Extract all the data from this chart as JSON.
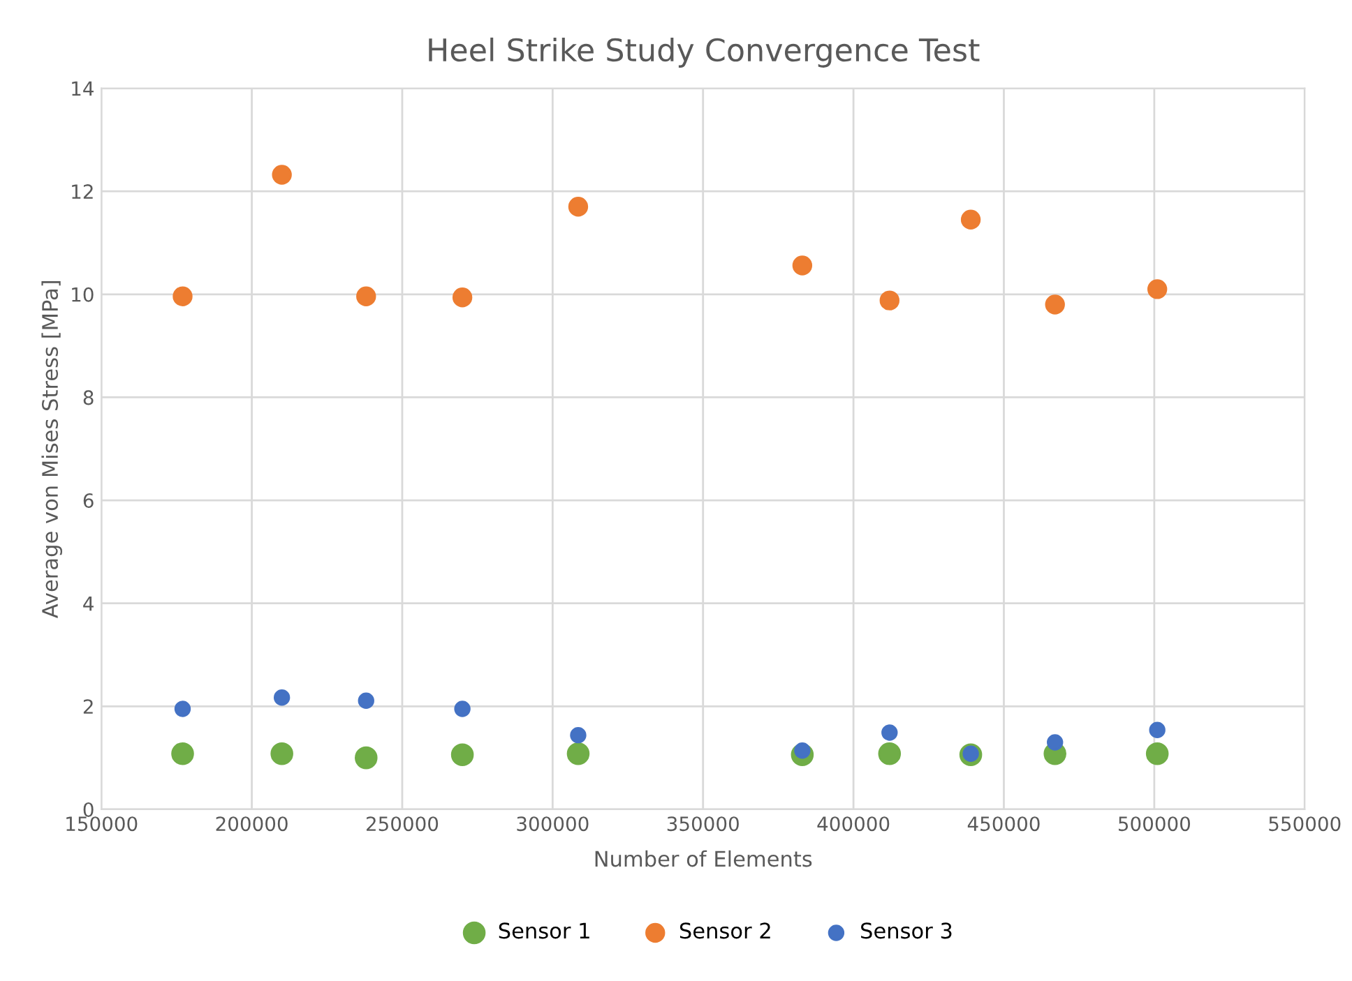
{
  "chart_data": {
    "type": "scatter",
    "title": "Heel Strike Study Convergence Test",
    "xlabel": "Number of Elements",
    "ylabel": "Average von Mises Stress [MPa]",
    "x": [
      177000,
      210000,
      238000,
      270000,
      308500,
      383000,
      412000,
      439000,
      467000,
      501000
    ],
    "series": [
      {
        "name": "Sensor 1",
        "color": "#70ad47",
        "values": [
          1.08,
          1.08,
          1.0,
          1.06,
          1.08,
          1.06,
          1.08,
          1.06,
          1.08,
          1.08
        ]
      },
      {
        "name": "Sensor 2",
        "color": "#ed7d31",
        "values": [
          9.96,
          12.32,
          9.96,
          9.94,
          11.7,
          10.56,
          9.88,
          11.45,
          9.8,
          10.1
        ]
      },
      {
        "name": "Sensor 3",
        "color": "#4472c4",
        "values": [
          1.95,
          2.17,
          2.11,
          1.95,
          1.44,
          1.14,
          1.49,
          1.08,
          1.3,
          1.54
        ]
      }
    ],
    "xlim": [
      150000,
      550000
    ],
    "xticks": [
      150000,
      200000,
      250000,
      300000,
      350000,
      400000,
      450000,
      500000,
      550000
    ],
    "ylim": [
      0,
      14
    ],
    "yticks": [
      0,
      2,
      4,
      6,
      8,
      10,
      12,
      14
    ],
    "grid": true,
    "legend": "bottom",
    "marker": "circle"
  }
}
